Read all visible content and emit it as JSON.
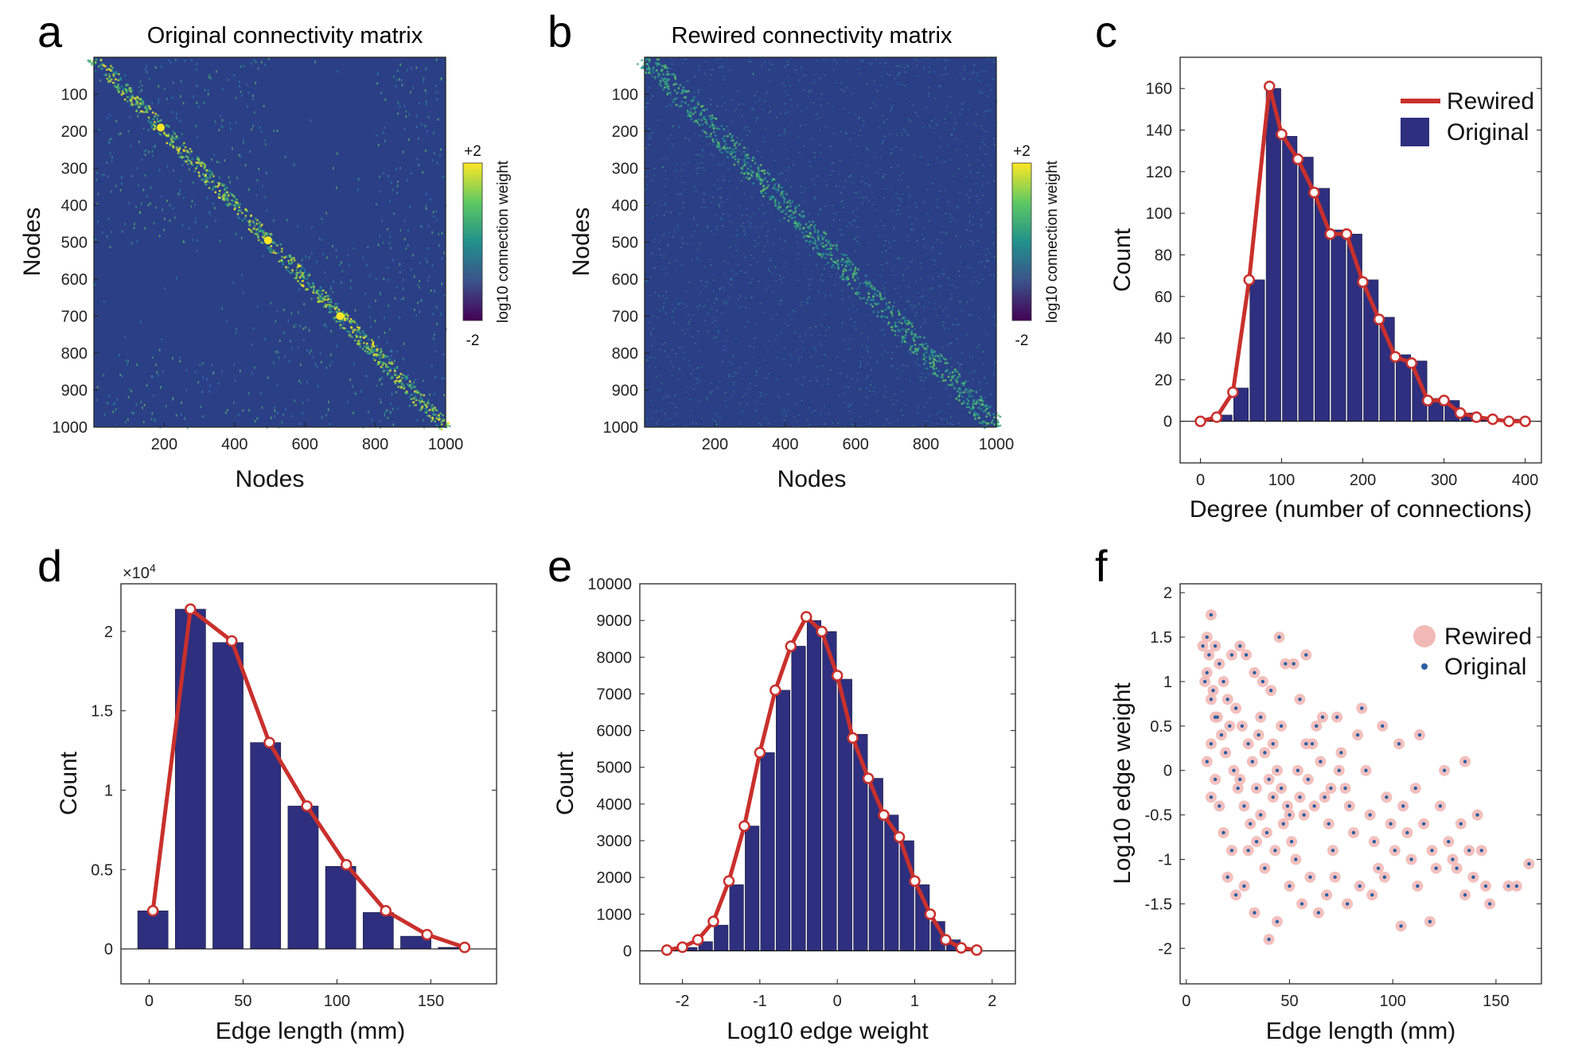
{
  "panels": {
    "a": {
      "letter": "a",
      "title": "Original connectivity matrix",
      "xlabel": "Nodes",
      "ylabel": "Nodes",
      "colorbar": {
        "top": "+2",
        "bottom": "-2",
        "label": "log10 connection weight"
      }
    },
    "b": {
      "letter": "b",
      "title": "Rewired connectivity matrix",
      "xlabel": "Nodes",
      "ylabel": "Nodes",
      "colorbar": {
        "top": "+2",
        "bottom": "-2",
        "label": "log10 connection weight"
      }
    },
    "c": {
      "letter": "c",
      "xlabel": "Degree (number of connections)",
      "ylabel": "Count"
    },
    "d": {
      "letter": "d",
      "xlabel": "Edge length (mm)",
      "ylabel": "Count",
      "multiplier": "×10",
      "multiplier_exp": "4"
    },
    "e": {
      "letter": "e",
      "xlabel": "Log10 edge weight",
      "ylabel": "Count"
    },
    "f": {
      "letter": "f",
      "xlabel": "Edge length (mm)",
      "ylabel": "Log10 edge weight"
    }
  },
  "colors": {
    "bar": "#2e2f7e",
    "line": "#c9302c",
    "matrix_bg": "#2b3f87",
    "rewired_dot": "#f2b9b6",
    "original_dot": "#2a5fa3",
    "colormap": [
      "#440154",
      "#3b528b",
      "#21918c",
      "#5ec962",
      "#fde725"
    ]
  },
  "chart_data": [
    {
      "panel": "a",
      "type": "heatmap",
      "x_ticks": [
        "200",
        "400",
        "600",
        "800",
        "1000"
      ],
      "y_ticks": [
        "100",
        "200",
        "300",
        "400",
        "500",
        "600",
        "700",
        "800",
        "900",
        "1000"
      ],
      "xlim": [
        0,
        1000
      ],
      "ylim": [
        0,
        1000
      ],
      "colorscale": "log10",
      "clim": [
        -2,
        2
      ]
    },
    {
      "panel": "b",
      "type": "heatmap",
      "x_ticks": [
        "200",
        "400",
        "600",
        "800",
        "1000"
      ],
      "y_ticks": [
        "100",
        "200",
        "300",
        "400",
        "500",
        "600",
        "700",
        "800",
        "900",
        "1000"
      ],
      "xlim": [
        0,
        1000
      ],
      "ylim": [
        0,
        1000
      ],
      "colorscale": "log10",
      "clim": [
        -2,
        2
      ]
    },
    {
      "panel": "c",
      "type": "bar",
      "xlim": [
        -25,
        420
      ],
      "ylim": [
        -20,
        175
      ],
      "x_ticks": [
        "0",
        "100",
        "200",
        "300",
        "400"
      ],
      "y_ticks": [
        "0",
        "20",
        "40",
        "60",
        "80",
        "100",
        "120",
        "140",
        "160"
      ],
      "bar_width": 20,
      "original_bars": {
        "x": [
          10,
          30,
          50,
          70,
          90,
          110,
          130,
          150,
          170,
          190,
          210,
          230,
          250,
          270,
          290,
          310,
          330,
          350,
          370,
          390
        ],
        "y": [
          1,
          3,
          16,
          68,
          160,
          137,
          127,
          112,
          92,
          90,
          68,
          50,
          32,
          29,
          11,
          10,
          4,
          2,
          1,
          1
        ]
      },
      "rewired_line": {
        "x": [
          0,
          20,
          40,
          60,
          85,
          100,
          120,
          140,
          160,
          180,
          200,
          220,
          240,
          260,
          280,
          300,
          320,
          340,
          360,
          380,
          400
        ],
        "y": [
          0,
          2,
          14,
          68,
          161,
          138,
          126,
          110,
          90,
          90,
          67,
          49,
          31,
          28,
          10,
          10,
          4,
          2,
          1,
          0,
          0
        ]
      },
      "legend": [
        {
          "label": "Rewired",
          "kind": "line"
        },
        {
          "label": "Original",
          "kind": "bar"
        }
      ]
    },
    {
      "panel": "d",
      "type": "bar",
      "xlim": [
        -15,
        185
      ],
      "ylim": [
        -0.22,
        2.3
      ],
      "y_scale_multiplier": 10000,
      "x_ticks": [
        "0",
        "50",
        "100",
        "150"
      ],
      "y_ticks": [
        "0",
        "0.5",
        "1",
        "1.5",
        "2"
      ],
      "bar_width": 17,
      "original_bars": {
        "x": [
          2,
          22,
          42,
          62,
          82,
          102,
          122,
          142,
          162
        ],
        "y": [
          0.24,
          2.14,
          1.93,
          1.3,
          0.9,
          0.52,
          0.23,
          0.08,
          0.01
        ]
      },
      "rewired_line": {
        "x": [
          2,
          22,
          44,
          64,
          84,
          105,
          126,
          148,
          168
        ],
        "y": [
          0.24,
          2.14,
          1.94,
          1.3,
          0.9,
          0.53,
          0.24,
          0.09,
          0.01
        ]
      }
    },
    {
      "panel": "e",
      "type": "bar",
      "xlim": [
        -2.55,
        2.3
      ],
      "ylim": [
        -900,
        10000
      ],
      "x_ticks": [
        "-2",
        "-1",
        "0",
        "1",
        "2"
      ],
      "y_ticks": [
        "0",
        "1000",
        "2000",
        "3000",
        "4000",
        "5000",
        "6000",
        "7000",
        "8000",
        "9000",
        "10000"
      ],
      "bar_width": 0.2,
      "original_bars": {
        "x": [
          -2.1,
          -1.9,
          -1.7,
          -1.5,
          -1.3,
          -1.1,
          -0.9,
          -0.7,
          -0.5,
          -0.3,
          -0.1,
          0.1,
          0.3,
          0.5,
          0.7,
          0.9,
          1.1,
          1.3,
          1.5,
          1.7
        ],
        "y": [
          30,
          90,
          250,
          700,
          1800,
          3400,
          5400,
          7100,
          8300,
          9000,
          8700,
          7400,
          5900,
          4700,
          3700,
          3000,
          1800,
          800,
          300,
          80
        ]
      },
      "rewired_line": {
        "x": [
          -2.2,
          -2.0,
          -1.8,
          -1.6,
          -1.4,
          -1.2,
          -1.0,
          -0.8,
          -0.6,
          -0.4,
          -0.2,
          0.0,
          0.2,
          0.4,
          0.6,
          0.8,
          1.0,
          1.2,
          1.4,
          1.6,
          1.8
        ],
        "y": [
          20,
          100,
          300,
          800,
          1900,
          3400,
          5400,
          7100,
          8300,
          9100,
          8700,
          7500,
          5800,
          4700,
          3700,
          3100,
          1900,
          1000,
          300,
          80,
          20
        ]
      }
    },
    {
      "panel": "f",
      "type": "scatter",
      "xlim": [
        -3,
        172
      ],
      "ylim": [
        -2.4,
        2.1
      ],
      "x_ticks": [
        "0",
        "50",
        "100",
        "150"
      ],
      "y_ticks": [
        "-2",
        "-1.5",
        "-1",
        "-0.5",
        "0",
        "0.5",
        "1",
        "1.5",
        "2"
      ],
      "legend": [
        {
          "label": "Rewired",
          "kind": "dot-large"
        },
        {
          "label": "Original",
          "kind": "dot-small"
        }
      ],
      "points": [
        [
          10,
          1.5
        ],
        [
          12,
          1.75
        ],
        [
          14,
          1.4
        ],
        [
          11,
          1.3
        ],
        [
          9,
          1.0
        ],
        [
          13,
          0.9
        ],
        [
          16,
          1.2
        ],
        [
          18,
          1.0
        ],
        [
          20,
          0.8
        ],
        [
          22,
          1.3
        ],
        [
          15,
          0.6
        ],
        [
          17,
          0.4
        ],
        [
          19,
          0.2
        ],
        [
          21,
          0.5
        ],
        [
          23,
          0.0
        ],
        [
          25,
          -0.2
        ],
        [
          12,
          0.3
        ],
        [
          14,
          -0.1
        ],
        [
          16,
          -0.4
        ],
        [
          18,
          -0.7
        ],
        [
          26,
          1.4
        ],
        [
          29,
          1.3
        ],
        [
          33,
          1.1
        ],
        [
          37,
          1.0
        ],
        [
          41,
          0.9
        ],
        [
          45,
          1.5
        ],
        [
          48,
          1.2
        ],
        [
          52,
          1.2
        ],
        [
          55,
          0.8
        ],
        [
          58,
          1.3
        ],
        [
          24,
          0.7
        ],
        [
          27,
          0.5
        ],
        [
          30,
          0.3
        ],
        [
          32,
          0.1
        ],
        [
          35,
          0.4
        ],
        [
          38,
          0.2
        ],
        [
          40,
          -0.1
        ],
        [
          42,
          -0.3
        ],
        [
          44,
          0.0
        ],
        [
          46,
          -0.2
        ],
        [
          28,
          -0.4
        ],
        [
          31,
          -0.6
        ],
        [
          34,
          -0.8
        ],
        [
          36,
          -0.5
        ],
        [
          39,
          -0.7
        ],
        [
          43,
          -0.9
        ],
        [
          47,
          -0.6
        ],
        [
          49,
          -0.4
        ],
        [
          51,
          -0.8
        ],
        [
          53,
          -1.0
        ],
        [
          55,
          -0.3
        ],
        [
          57,
          -0.5
        ],
        [
          59,
          -0.1
        ],
        [
          61,
          0.3
        ],
        [
          63,
          0.5
        ],
        [
          65,
          0.1
        ],
        [
          67,
          -0.3
        ],
        [
          69,
          -0.6
        ],
        [
          71,
          -0.9
        ],
        [
          73,
          0.6
        ],
        [
          75,
          0.2
        ],
        [
          77,
          -0.2
        ],
        [
          79,
          -0.4
        ],
        [
          81,
          -0.7
        ],
        [
          83,
          0.4
        ],
        [
          85,
          0.7
        ],
        [
          87,
          0.0
        ],
        [
          89,
          -0.5
        ],
        [
          91,
          -0.8
        ],
        [
          93,
          -1.1
        ],
        [
          95,
          0.5
        ],
        [
          97,
          -0.3
        ],
        [
          99,
          -0.6
        ],
        [
          101,
          -0.9
        ],
        [
          103,
          0.3
        ],
        [
          105,
          -0.4
        ],
        [
          107,
          -0.7
        ],
        [
          109,
          -1.0
        ],
        [
          111,
          -0.2
        ],
        [
          113,
          0.4
        ],
        [
          20,
          -1.2
        ],
        [
          24,
          -1.4
        ],
        [
          28,
          -1.3
        ],
        [
          33,
          -1.6
        ],
        [
          38,
          -1.1
        ],
        [
          40,
          -1.9
        ],
        [
          44,
          -1.7
        ],
        [
          50,
          -1.3
        ],
        [
          56,
          -1.5
        ],
        [
          60,
          -1.2
        ],
        [
          64,
          -1.6
        ],
        [
          68,
          -1.4
        ],
        [
          72,
          -1.2
        ],
        [
          78,
          -1.5
        ],
        [
          84,
          -1.3
        ],
        [
          90,
          -1.4
        ],
        [
          96,
          -1.2
        ],
        [
          104,
          -1.75
        ],
        [
          112,
          -1.3
        ],
        [
          118,
          -1.7
        ],
        [
          115,
          -0.6
        ],
        [
          119,
          -0.9
        ],
        [
          121,
          -1.1
        ],
        [
          123,
          -0.4
        ],
        [
          125,
          0.0
        ],
        [
          127,
          -0.8
        ],
        [
          131,
          -1.1
        ],
        [
          133,
          -0.6
        ],
        [
          137,
          -0.9
        ],
        [
          139,
          -1.2
        ],
        [
          135,
          0.1
        ],
        [
          141,
          -0.5
        ],
        [
          143,
          -0.9
        ],
        [
          145,
          -1.3
        ],
        [
          147,
          -1.5
        ],
        [
          129,
          -1.0
        ],
        [
          135,
          -1.4
        ],
        [
          156,
          -1.3
        ],
        [
          160,
          -1.3
        ],
        [
          166,
          -1.05
        ],
        [
          8,
          1.4
        ],
        [
          10,
          1.1
        ],
        [
          12,
          0.8
        ],
        [
          14,
          0.6
        ],
        [
          10,
          0.1
        ],
        [
          12,
          -0.3
        ],
        [
          22,
          -0.9
        ],
        [
          26,
          -0.1
        ],
        [
          30,
          -0.9
        ],
        [
          34,
          -0.2
        ],
        [
          36,
          0.6
        ],
        [
          42,
          0.3
        ],
        [
          46,
          0.5
        ],
        [
          50,
          -0.5
        ],
        [
          54,
          0.0
        ],
        [
          58,
          0.3
        ],
        [
          62,
          -0.4
        ],
        [
          66,
          0.6
        ],
        [
          70,
          -0.2
        ],
        [
          74,
          0.0
        ]
      ]
    }
  ]
}
